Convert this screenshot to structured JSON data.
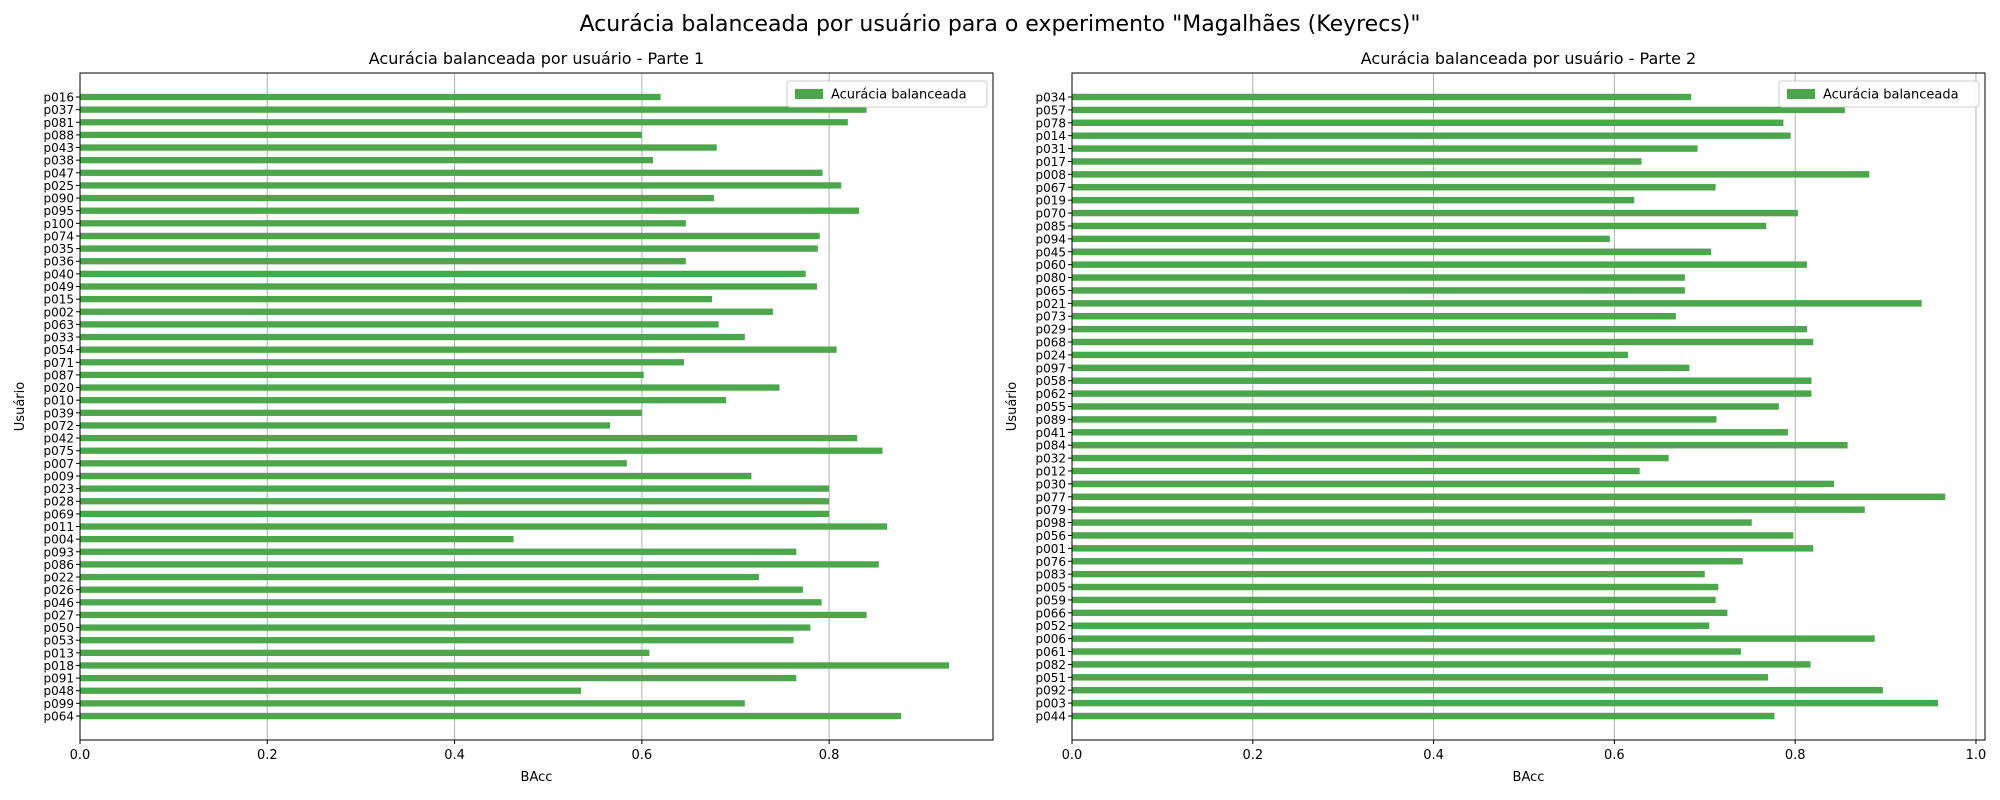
{
  "suptitle": "Acurácia balanceada por usuário para o experimento \"Magalhães (Keyrecs)\"",
  "colors": {
    "bar": "#4ca64c",
    "grid": "#b0b0b0",
    "axis": "#000000"
  },
  "chart_data": [
    {
      "type": "bar",
      "orientation": "horizontal",
      "title": "Acurácia balanceada por usuário - Parte 1",
      "xlabel": "BAcc",
      "ylabel": "Usuário",
      "xlim": [
        0,
        0.975
      ],
      "xticks": [
        0.0,
        0.2,
        0.4,
        0.6,
        0.8
      ],
      "grid": "vertical",
      "legend": {
        "label": "Acurácia balanceada",
        "position": "top-right"
      },
      "categories": [
        "p016",
        "p037",
        "p081",
        "p088",
        "p043",
        "p038",
        "p047",
        "p025",
        "p090",
        "p095",
        "p100",
        "p074",
        "p035",
        "p036",
        "p040",
        "p049",
        "p015",
        "p002",
        "p063",
        "p033",
        "p054",
        "p071",
        "p087",
        "p020",
        "p010",
        "p039",
        "p072",
        "p042",
        "p075",
        "p007",
        "p009",
        "p023",
        "p028",
        "p069",
        "p011",
        "p004",
        "p093",
        "p086",
        "p022",
        "p026",
        "p046",
        "p027",
        "p050",
        "p053",
        "p013",
        "p018",
        "p091",
        "p048",
        "p099",
        "p064"
      ],
      "values": [
        0.62,
        0.84,
        0.82,
        0.6,
        0.68,
        0.612,
        0.793,
        0.813,
        0.677,
        0.832,
        0.647,
        0.79,
        0.788,
        0.647,
        0.775,
        0.787,
        0.675,
        0.74,
        0.682,
        0.71,
        0.808,
        0.645,
        0.602,
        0.747,
        0.69,
        0.6,
        0.566,
        0.83,
        0.857,
        0.584,
        0.717,
        0.8,
        0.8,
        0.8,
        0.862,
        0.463,
        0.765,
        0.853,
        0.725,
        0.772,
        0.792,
        0.84,
        0.78,
        0.762,
        0.608,
        0.928,
        0.765,
        0.535,
        0.71,
        0.877
      ]
    },
    {
      "type": "bar",
      "orientation": "horizontal",
      "title": "Acurácia balanceada por usuário - Parte 2",
      "xlabel": "BAcc",
      "ylabel": "Usuário",
      "xlim": [
        0,
        1.01
      ],
      "xticks": [
        0.0,
        0.2,
        0.4,
        0.6,
        0.8,
        1.0
      ],
      "grid": "vertical",
      "legend": {
        "label": "Acurácia balanceada",
        "position": "top-right"
      },
      "categories": [
        "p034",
        "p057",
        "p078",
        "p014",
        "p031",
        "p017",
        "p008",
        "p067",
        "p019",
        "p070",
        "p085",
        "p094",
        "p045",
        "p060",
        "p080",
        "p065",
        "p021",
        "p073",
        "p029",
        "p068",
        "p024",
        "p097",
        "p058",
        "p062",
        "p055",
        "p089",
        "p041",
        "p084",
        "p032",
        "p012",
        "p030",
        "p077",
        "p079",
        "p098",
        "p056",
        "p001",
        "p076",
        "p083",
        "p005",
        "p059",
        "p066",
        "p052",
        "p006",
        "p061",
        "p082",
        "p051",
        "p092",
        "p003",
        "p044"
      ],
      "values": [
        0.685,
        0.855,
        0.787,
        0.795,
        0.692,
        0.63,
        0.882,
        0.712,
        0.622,
        0.803,
        0.768,
        0.595,
        0.707,
        0.813,
        0.678,
        0.678,
        0.94,
        0.668,
        0.813,
        0.82,
        0.615,
        0.683,
        0.818,
        0.818,
        0.782,
        0.713,
        0.792,
        0.858,
        0.66,
        0.628,
        0.843,
        0.966,
        0.877,
        0.752,
        0.798,
        0.82,
        0.742,
        0.7,
        0.715,
        0.712,
        0.725,
        0.705,
        0.888,
        0.74,
        0.817,
        0.77,
        0.897,
        0.958,
        0.777
      ]
    }
  ]
}
